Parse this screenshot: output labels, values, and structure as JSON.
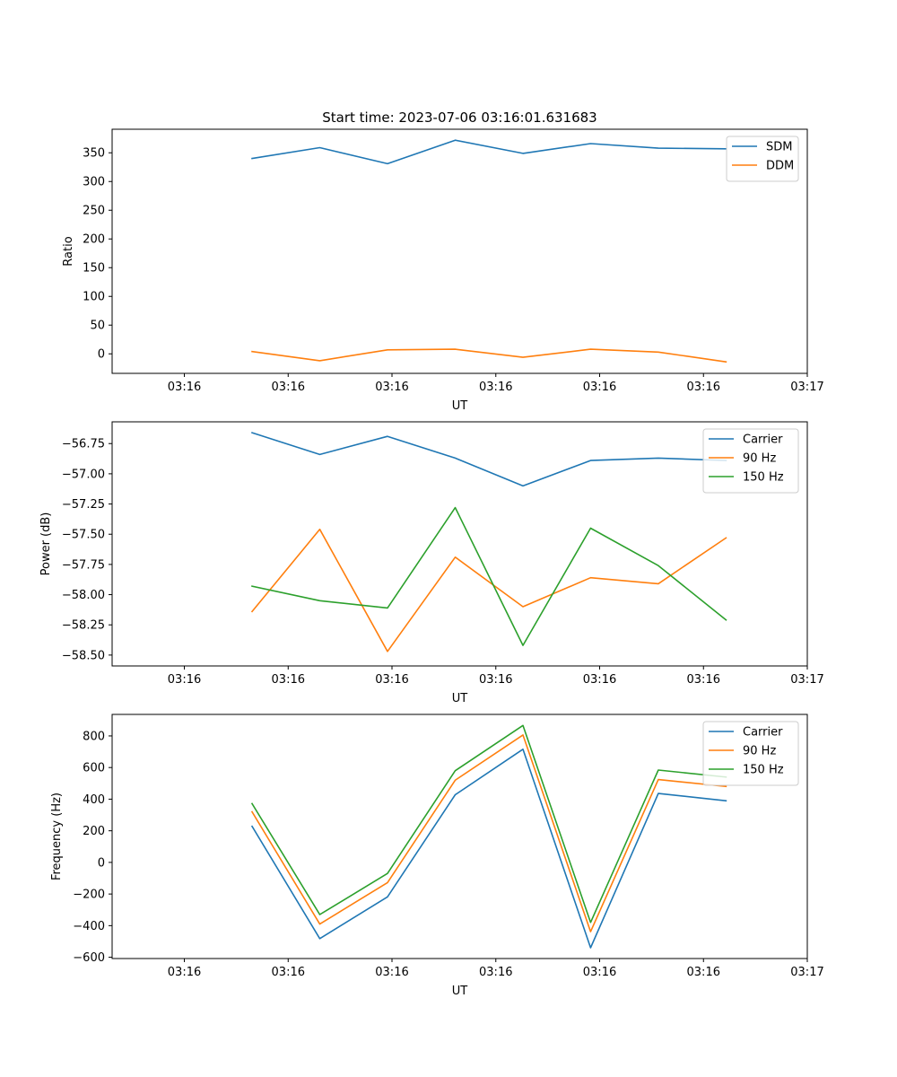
{
  "figure_title": "Start time: 2023-07-06 03:16:01.631683",
  "colors": {
    "blue": "#1f77b4",
    "orange": "#ff7f0e",
    "green": "#2ca02c"
  },
  "chart_data": [
    {
      "type": "line",
      "title": "Start time: 2023-07-06 03:16:01.631683",
      "xlabel": "UT",
      "ylabel": "Ratio",
      "x": [
        0.75,
        1.5,
        2.25,
        3.0,
        3.75,
        4.5,
        5.25,
        6.0
      ],
      "xlim": [
        -0.8,
        6.9
      ],
      "xticks": [
        0,
        1.15,
        2.3,
        3.45,
        4.6,
        5.75,
        6.9
      ],
      "xtick_labels": [
        "03:16",
        "03:16",
        "03:16",
        "03:16",
        "03:16",
        "03:16",
        "03:17"
      ],
      "ylim": [
        -34,
        391
      ],
      "yticks": [
        0,
        50,
        100,
        150,
        200,
        250,
        300,
        350
      ],
      "ytick_labels": [
        "0",
        "50",
        "100",
        "150",
        "200",
        "250",
        "300",
        "350"
      ],
      "legend_position": "top-right",
      "series": [
        {
          "name": "SDM",
          "color": "#1f77b4",
          "values": [
            340,
            359,
            331,
            372,
            349,
            366,
            358,
            357
          ]
        },
        {
          "name": "DDM",
          "color": "#ff7f0e",
          "values": [
            4,
            -12,
            7,
            8,
            -6,
            8,
            3,
            -14
          ]
        }
      ]
    },
    {
      "type": "line",
      "title": "",
      "xlabel": "UT",
      "ylabel": "Power (dB)",
      "x": [
        0.75,
        1.5,
        2.25,
        3.0,
        3.75,
        4.5,
        5.25,
        6.0
      ],
      "xlim": [
        -0.8,
        6.9
      ],
      "xticks": [
        0,
        1.15,
        2.3,
        3.45,
        4.6,
        5.75,
        6.9
      ],
      "xtick_labels": [
        "03:16",
        "03:16",
        "03:16",
        "03:16",
        "03:16",
        "03:16",
        "03:17"
      ],
      "ylim": [
        -58.59,
        -56.57
      ],
      "yticks": [
        -58.5,
        -58.25,
        -58.0,
        -57.75,
        -57.5,
        -57.25,
        -57.0,
        -56.75
      ],
      "ytick_labels": [
        "−58.50",
        "−58.25",
        "−58.00",
        "−57.75",
        "−57.50",
        "−57.25",
        "−57.00",
        "−56.75"
      ],
      "legend_position": "top-right",
      "series": [
        {
          "name": "Carrier",
          "color": "#1f77b4",
          "values": [
            -56.66,
            -56.84,
            -56.69,
            -56.87,
            -57.1,
            -56.89,
            -56.87,
            -56.89
          ]
        },
        {
          "name": "90 Hz",
          "color": "#ff7f0e",
          "values": [
            -58.14,
            -57.46,
            -58.47,
            -57.69,
            -58.1,
            -57.86,
            -57.91,
            -57.53
          ]
        },
        {
          "name": "150 Hz",
          "color": "#2ca02c",
          "values": [
            -57.93,
            -58.05,
            -58.11,
            -57.28,
            -58.42,
            -57.45,
            -57.76,
            -58.21
          ]
        }
      ]
    },
    {
      "type": "line",
      "title": "",
      "xlabel": "UT",
      "ylabel": "Frequency (Hz)",
      "x": [
        0.75,
        1.5,
        2.25,
        3.0,
        3.75,
        4.5,
        5.25,
        6.0
      ],
      "xlim": [
        -0.8,
        6.9
      ],
      "xticks": [
        0,
        1.15,
        2.3,
        3.45,
        4.6,
        5.75,
        6.9
      ],
      "xtick_labels": [
        "03:16",
        "03:16",
        "03:16",
        "03:16",
        "03:16",
        "03:16",
        "03:17"
      ],
      "ylim": [
        -608,
        936
      ],
      "yticks": [
        -600,
        -400,
        -200,
        0,
        200,
        400,
        600,
        800
      ],
      "ytick_labels": [
        "−600",
        "−400",
        "−200",
        "0",
        "200",
        "400",
        "600",
        "800"
      ],
      "legend_position": "top-right",
      "series": [
        {
          "name": "Carrier",
          "color": "#1f77b4",
          "values": [
            228,
            -482,
            -218,
            428,
            716,
            -540,
            436,
            390
          ]
        },
        {
          "name": "90 Hz",
          "color": "#ff7f0e",
          "values": [
            320,
            -390,
            -128,
            520,
            806,
            -438,
            524,
            480
          ]
        },
        {
          "name": "150 Hz",
          "color": "#2ca02c",
          "values": [
            372,
            -330,
            -70,
            580,
            866,
            -380,
            584,
            540
          ]
        }
      ]
    }
  ]
}
